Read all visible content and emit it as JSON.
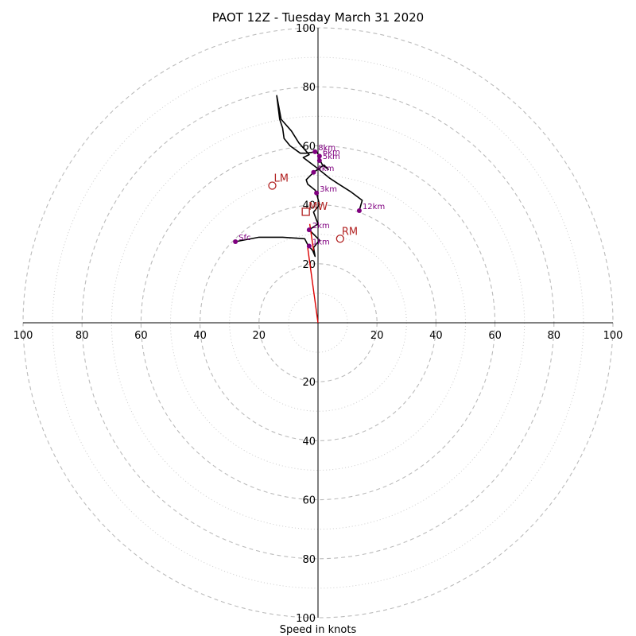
{
  "chart_data": {
    "type": "hodograph",
    "title": "PAOT 12Z - Tuesday March 31 2020",
    "xlabel": "Speed in knots",
    "range": [
      -100,
      100
    ],
    "rings_major": [
      20,
      40,
      60,
      80,
      100
    ],
    "rings_minor": [
      10,
      30,
      50,
      70,
      90
    ],
    "tick_labels": {
      "x_left": [
        "100",
        "80",
        "60",
        "40",
        "20"
      ],
      "x_right": [
        "20",
        "40",
        "60",
        "80",
        "100"
      ],
      "y_up": [
        "20",
        "40",
        "60",
        "80",
        "100"
      ],
      "y_down": [
        "20",
        "40",
        "60",
        "80",
        "100"
      ]
    },
    "profile_uv": [
      [
        -28,
        27.5
      ],
      [
        -20,
        29
      ],
      [
        -12,
        29
      ],
      [
        -4.5,
        28.5
      ],
      [
        -3.5,
        26.5
      ],
      [
        -1.8,
        24.5
      ],
      [
        -1,
        22.5
      ],
      [
        -1.5,
        25.5
      ],
      [
        0.5,
        28
      ],
      [
        -3,
        31.5
      ],
      [
        0,
        33.5
      ],
      [
        -1.5,
        37.5
      ],
      [
        0.5,
        40
      ],
      [
        -0.5,
        44
      ],
      [
        -1,
        45
      ],
      [
        -3.5,
        47
      ],
      [
        -4,
        48.5
      ],
      [
        -1.5,
        51
      ],
      [
        2,
        53.5
      ],
      [
        3.5,
        52
      ],
      [
        1.5,
        53.5
      ],
      [
        0.5,
        55.5
      ],
      [
        0.5,
        56.5
      ],
      [
        -0.5,
        58
      ],
      [
        -4,
        57.5
      ],
      [
        -6,
        57.5
      ],
      [
        -9.5,
        60
      ],
      [
        -11.5,
        62.5
      ],
      [
        -12,
        66
      ],
      [
        -13,
        69
      ],
      [
        -14,
        77
      ],
      [
        -12.5,
        69
      ],
      [
        -9,
        65
      ],
      [
        -6.5,
        61
      ],
      [
        -3,
        57
      ],
      [
        -5,
        56
      ],
      [
        -1,
        53
      ],
      [
        1.5,
        51
      ],
      [
        4,
        49
      ],
      [
        7,
        47
      ],
      [
        11,
        44.5
      ],
      [
        15,
        41.5
      ],
      [
        14,
        38
      ]
    ],
    "height_markers": [
      {
        "label": "Sfc",
        "u": -28,
        "v": 27.5
      },
      {
        "label": "1km",
        "u": -3,
        "v": 26
      },
      {
        "label": "2km",
        "u": -3,
        "v": 31.5
      },
      {
        "label": "3km",
        "u": -0.5,
        "v": 44
      },
      {
        "label": "4km",
        "u": -1.5,
        "v": 51
      },
      {
        "label": "5km",
        "u": 0.5,
        "v": 55
      },
      {
        "label": "6km",
        "u": 0.5,
        "v": 56.5
      },
      {
        "label": "8km",
        "u": -1,
        "v": 58
      },
      {
        "label": "12km",
        "u": 14,
        "v": 38
      }
    ],
    "motion": {
      "LM": {
        "label": "LM",
        "u": -15.5,
        "v": 46.5
      },
      "RM": {
        "label": "RM",
        "u": 7.5,
        "v": 28.5
      },
      "MW": {
        "label": "MW",
        "u": -4,
        "v": 37.5
      }
    },
    "colors": {
      "profile": "#000000",
      "markers": "#800080",
      "motion": "#b22222",
      "shear_vector": "#dd0000",
      "grid": "#bbbbbb"
    }
  }
}
